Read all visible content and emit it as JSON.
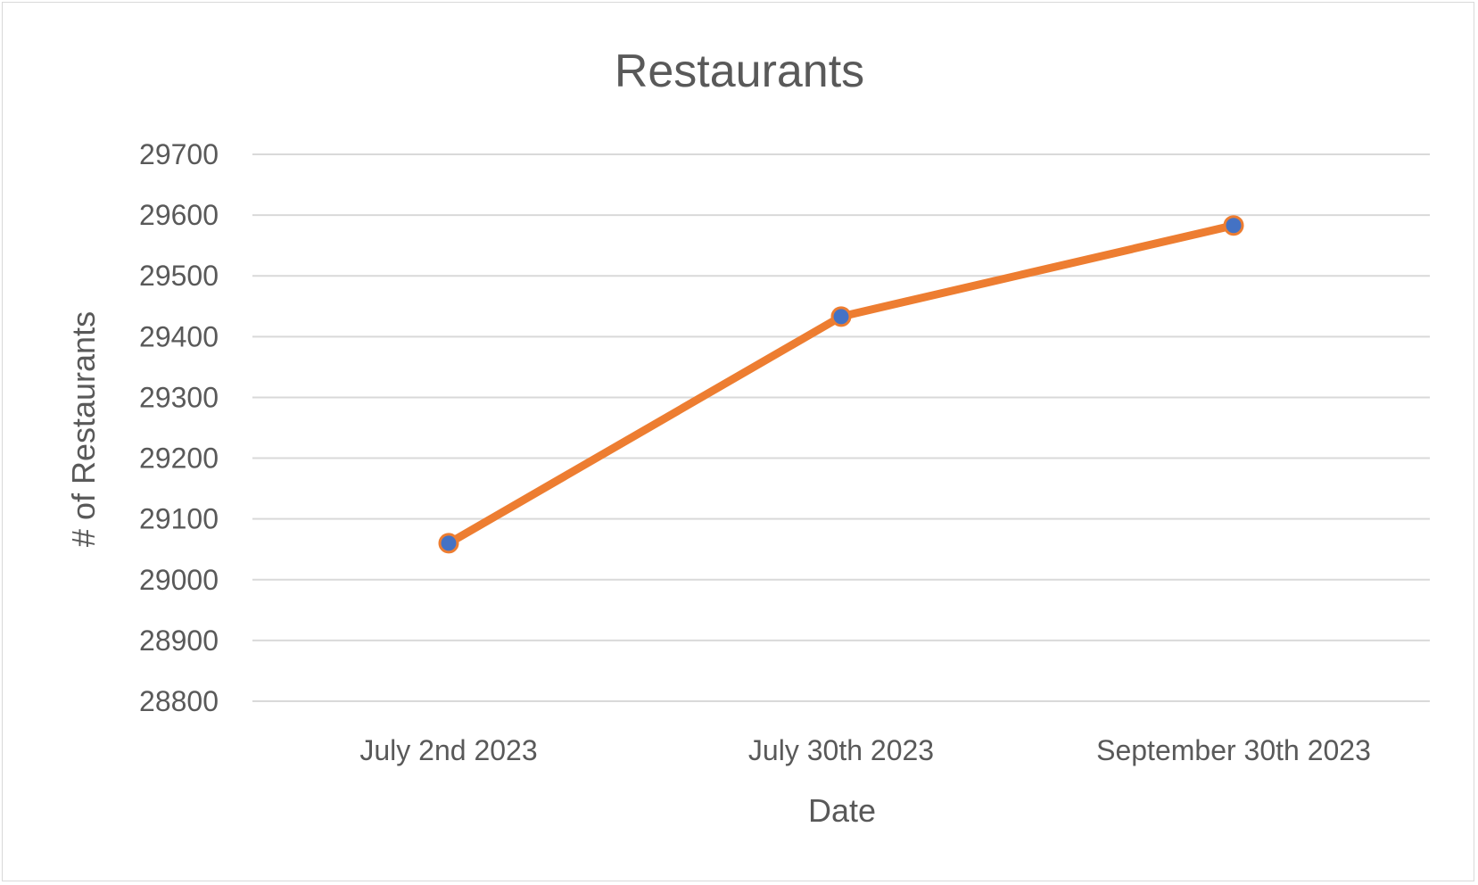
{
  "chart_data": {
    "type": "line",
    "title": "Restaurants",
    "xlabel": "Date",
    "ylabel": "# of Restaurants",
    "categories": [
      "July 2nd 2023",
      "July 30th 2023",
      "September 30th 2023"
    ],
    "series": [
      {
        "values": [
          29060,
          29433,
          29583
        ],
        "color": "#ED7D31",
        "marker_color": "#4472C4"
      }
    ],
    "ylim": [
      28800,
      29700
    ],
    "yticks": [
      28800,
      28900,
      29000,
      29100,
      29200,
      29300,
      29400,
      29500,
      29600,
      29700
    ],
    "grid": true,
    "legend": "none"
  }
}
